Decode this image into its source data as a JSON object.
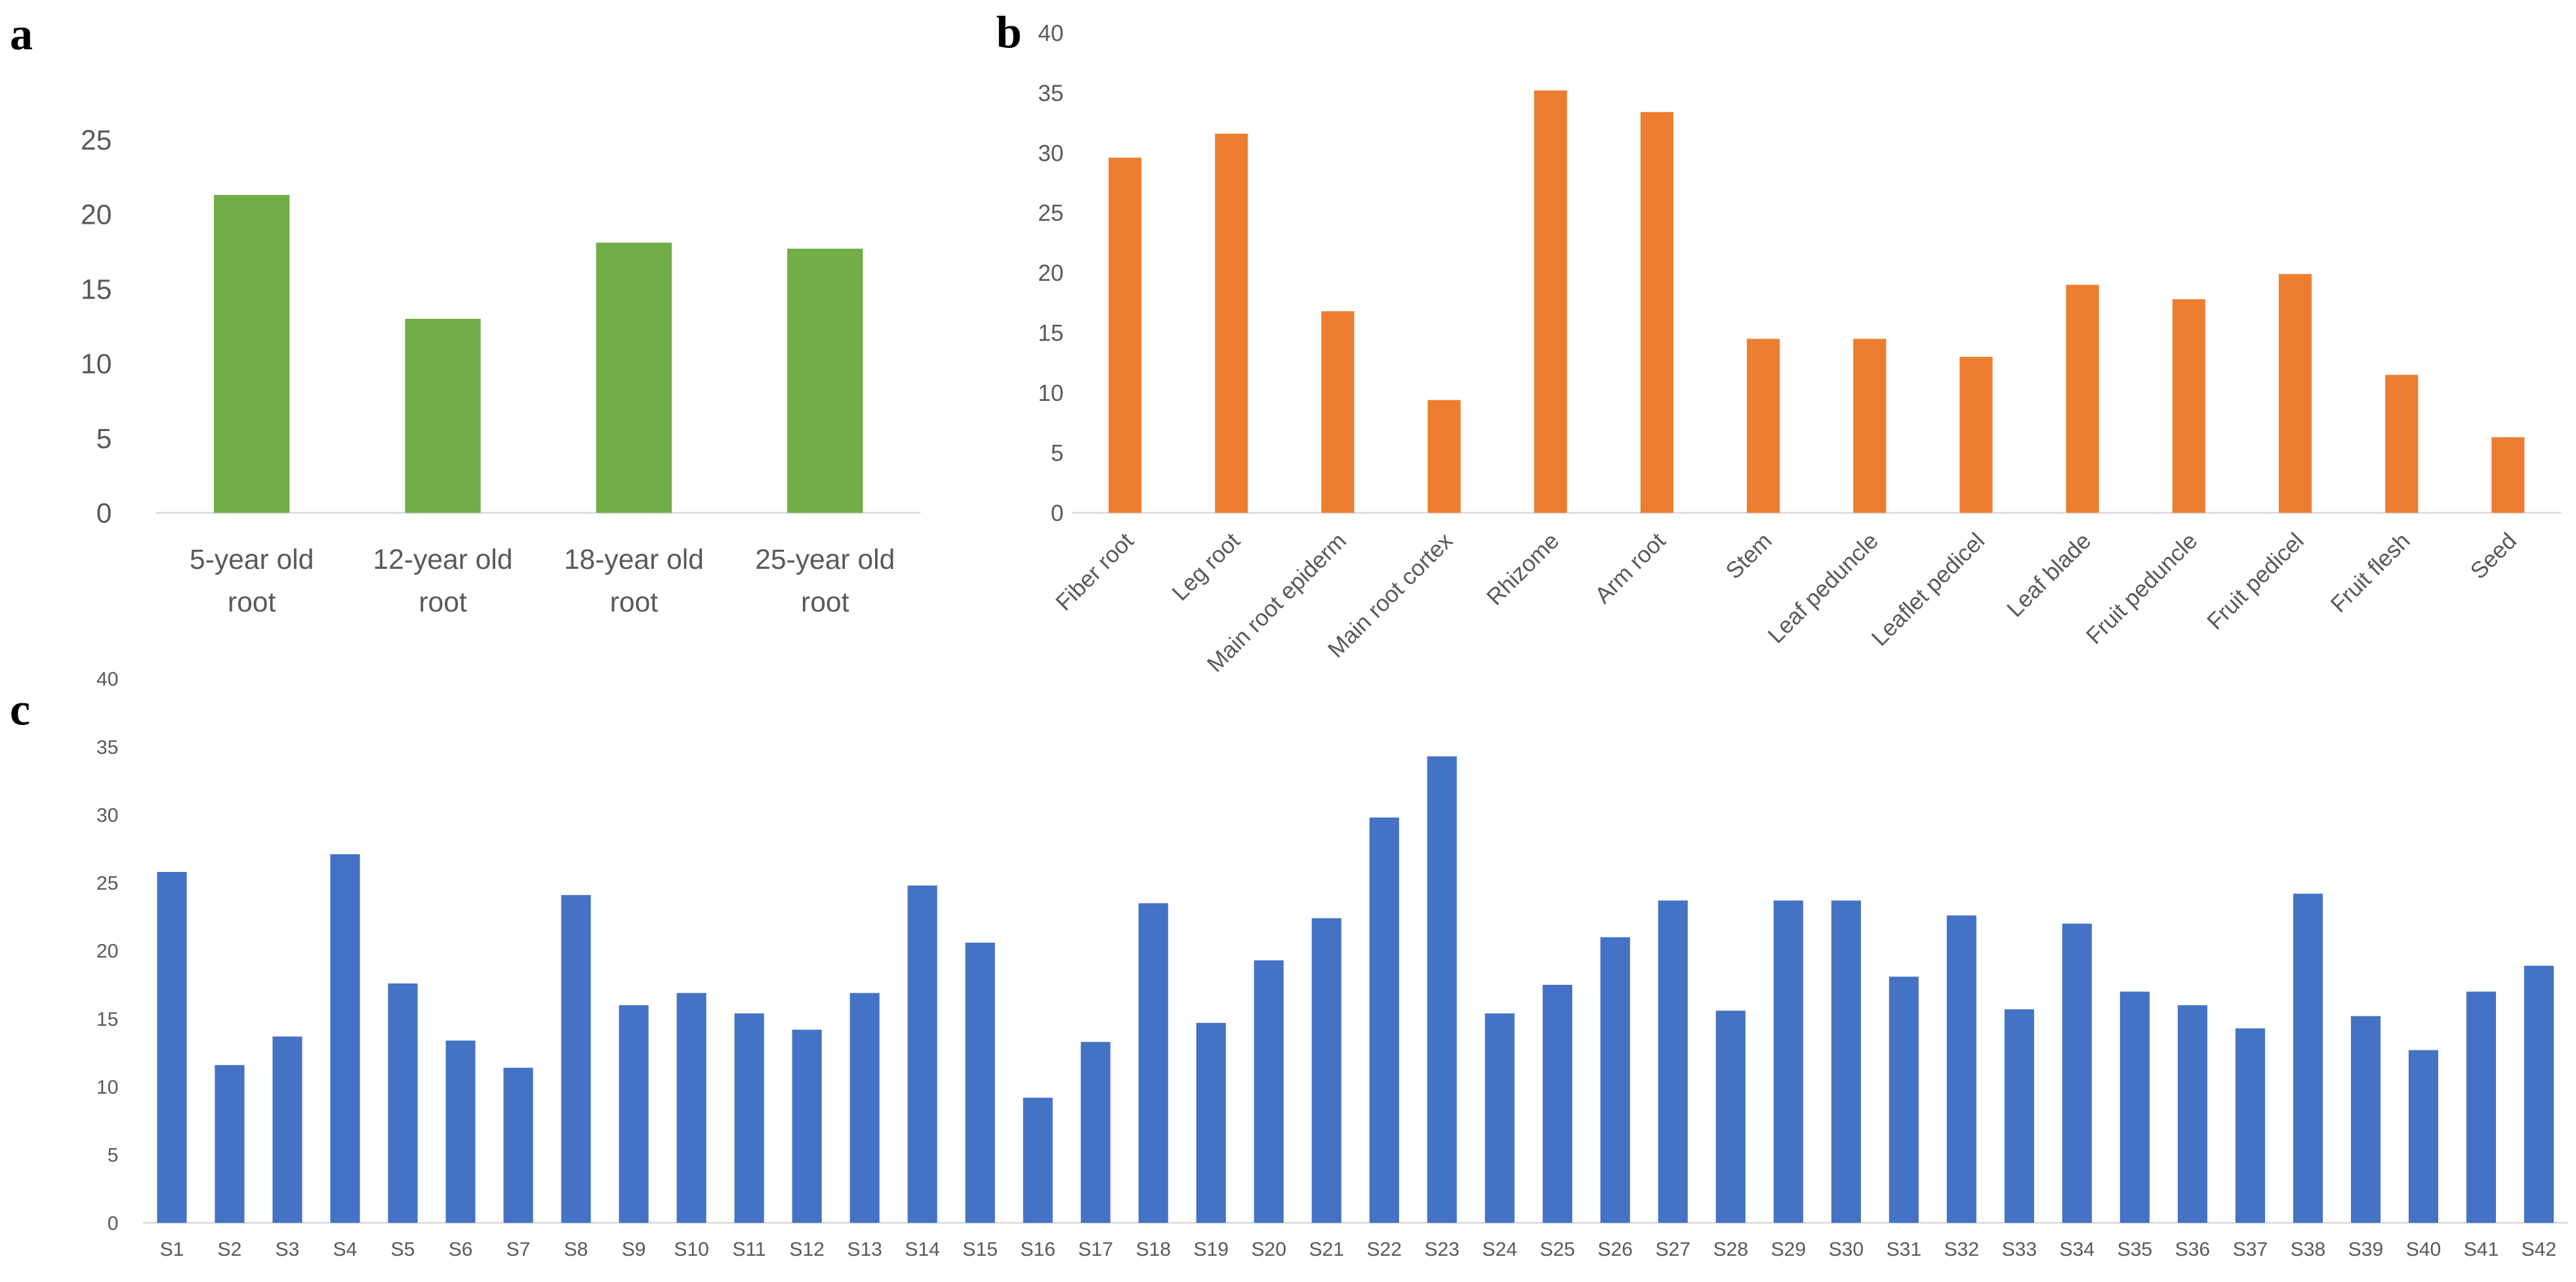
{
  "panels": {
    "a": "a",
    "b": "b",
    "c": "c"
  },
  "colors": {
    "a": "#70AD47",
    "b": "#ED7D31",
    "c": "#4472C4",
    "axis": "#D9D9D9"
  },
  "chart_data": [
    {
      "panel": "a",
      "type": "bar",
      "title": "",
      "xlabel": "",
      "ylabel": "",
      "ylim": [
        0,
        25
      ],
      "yticks": [
        0,
        5,
        10,
        15,
        20,
        25
      ],
      "grid": false,
      "categories": [
        "5-year old root",
        "12-year old root",
        "18-year old root",
        "25-year old root"
      ],
      "values": [
        21.3,
        13.0,
        18.1,
        17.7
      ]
    },
    {
      "panel": "b",
      "type": "bar",
      "title": "",
      "xlabel": "",
      "ylabel": "",
      "ylim": [
        0,
        40
      ],
      "yticks": [
        0,
        5,
        10,
        15,
        20,
        25,
        30,
        35,
        40
      ],
      "grid": false,
      "categories": [
        "Fiber root",
        "Leg root",
        "Main root epiderm",
        "Main root cortex",
        "Rhizome",
        "Arm root",
        "Stem",
        "Leaf peduncle",
        "Leaflet pedicel",
        "Leaf blade",
        "Fruit peduncle",
        "Fruit pedicel",
        "Fruit flesh",
        "Seed"
      ],
      "values": [
        29.6,
        31.6,
        16.8,
        9.4,
        35.2,
        33.4,
        14.5,
        14.5,
        13.0,
        19.0,
        17.8,
        19.9,
        11.5,
        6.3
      ]
    },
    {
      "panel": "c",
      "type": "bar",
      "title": "",
      "xlabel": "",
      "ylabel": "",
      "ylim": [
        0,
        40
      ],
      "yticks": [
        0,
        5,
        10,
        15,
        20,
        25,
        30,
        35,
        40
      ],
      "grid": false,
      "categories": [
        "S1",
        "S2",
        "S3",
        "S4",
        "S5",
        "S6",
        "S7",
        "S8",
        "S9",
        "S10",
        "S11",
        "S12",
        "S13",
        "S14",
        "S15",
        "S16",
        "S17",
        "S18",
        "S19",
        "S20",
        "S21",
        "S22",
        "S23",
        "S24",
        "S25",
        "S26",
        "S27",
        "S28",
        "S29",
        "S30",
        "S31",
        "S32",
        "S33",
        "S34",
        "S35",
        "S36",
        "S37",
        "S38",
        "S39",
        "S40",
        "S41",
        "S42"
      ],
      "values": [
        25.8,
        11.6,
        13.7,
        27.1,
        17.6,
        13.4,
        11.4,
        24.1,
        16.0,
        16.9,
        15.4,
        14.2,
        16.9,
        24.8,
        20.6,
        9.2,
        13.3,
        23.5,
        14.7,
        19.3,
        22.4,
        29.8,
        34.3,
        15.4,
        17.5,
        21.0,
        23.7,
        15.6,
        23.7,
        23.7,
        18.1,
        22.6,
        15.7,
        22.0,
        17.0,
        16.0,
        14.3,
        24.2,
        15.2,
        12.7,
        17.0,
        18.9
      ]
    }
  ]
}
